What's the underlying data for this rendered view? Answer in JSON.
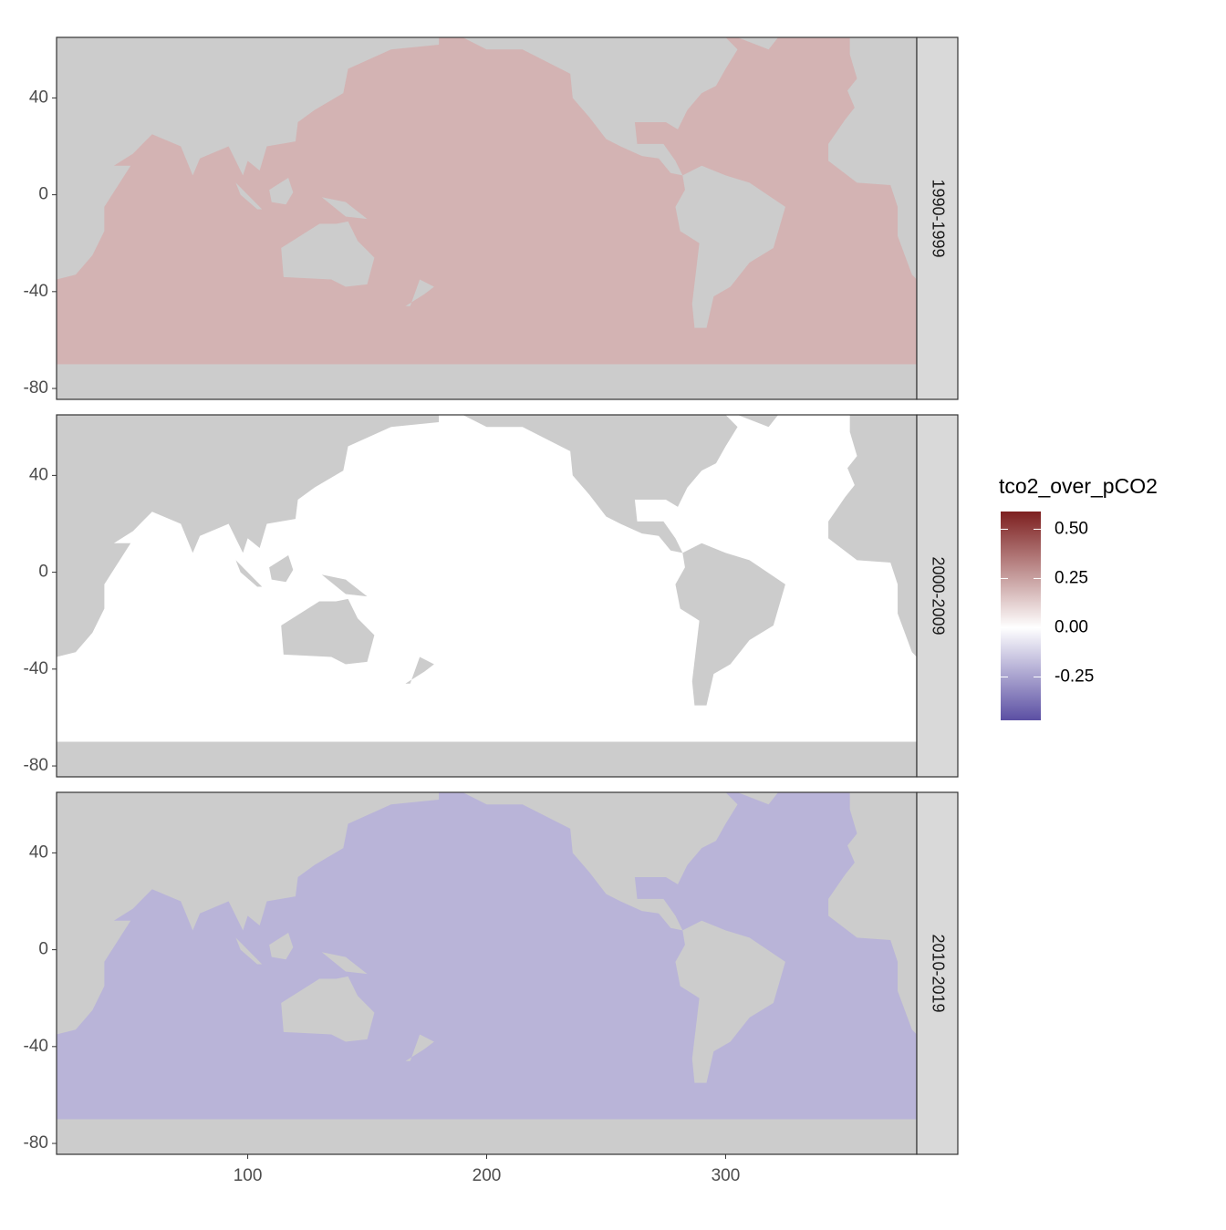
{
  "chart_data": {
    "type": "heatmap-map",
    "facets": [
      {
        "name": "1990-1999",
        "value": 0.2
      },
      {
        "name": "2000-2009",
        "value": 0
      },
      {
        "name": "2010-2019",
        "value": -0.2
      }
    ],
    "legend_title": "tco2_over_pCO2",
    "xlim": [
      20,
      380
    ],
    "xticks": [
      100,
      200,
      300
    ],
    "ylim": [
      -84.5,
      65
    ],
    "yticks": [
      -80,
      -40,
      0,
      40
    ],
    "colorbar_lim": [
      -0.47,
      0.59
    ],
    "colorbar_ticks": [
      {
        "value": 0.5,
        "label": "0.50"
      },
      {
        "value": 0.25,
        "label": "0.25"
      },
      {
        "value": 0,
        "label": "0.00"
      },
      {
        "value": -0.25,
        "label": "-0.25"
      }
    ],
    "colors": {
      "low": "#5b4fa3",
      "mid": "#ffffff",
      "high": "#7d1f1f"
    },
    "land_color": "#cccccc"
  }
}
